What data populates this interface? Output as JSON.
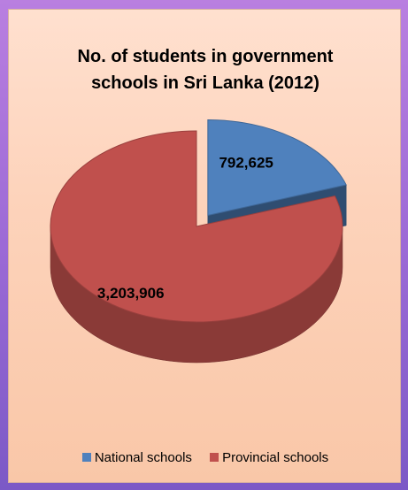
{
  "chart_data": {
    "type": "pie",
    "style": "3d-exploded",
    "title": "No. of students in government\nschools in Sri Lanka (2012)",
    "categories": [
      "National schools",
      "Provincial schools"
    ],
    "values": [
      792625,
      3203906
    ],
    "data_labels": [
      "792,625",
      "3,203,906"
    ],
    "colors": [
      "#4f81bd",
      "#c0504d"
    ],
    "legend_position": "bottom"
  }
}
